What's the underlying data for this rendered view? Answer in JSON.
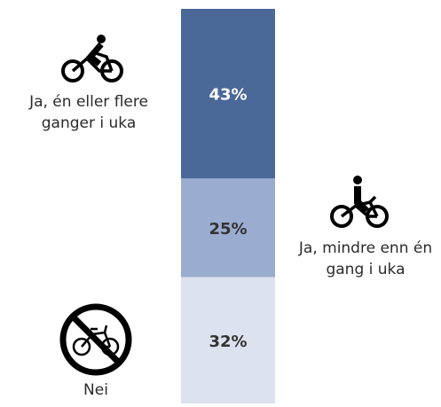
{
  "chart_data": {
    "type": "stacked_bar",
    "categories": [
      "Ja, én eller flere ganger i uka",
      "Ja, mindre enn én gang i uka",
      "Nei"
    ],
    "values": [
      43,
      25,
      32
    ],
    "value_labels": [
      "43%",
      "25%",
      "32%"
    ],
    "colors": [
      "#4a6898",
      "#9aaccf",
      "#dce2ee"
    ],
    "label_colors": [
      "#ffffff",
      "#333333",
      "#333333"
    ],
    "ylim": [
      0,
      100
    ]
  }
}
